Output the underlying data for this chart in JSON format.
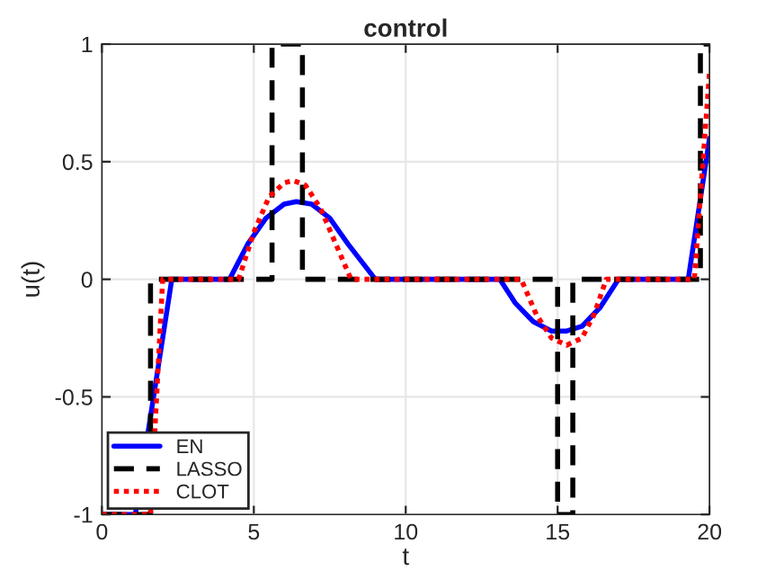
{
  "chart_data": {
    "type": "line",
    "title": "control",
    "xlabel": "t",
    "ylabel": "u(t)",
    "xlim": [
      0,
      20
    ],
    "ylim": [
      -1,
      1
    ],
    "xticks": [
      0,
      5,
      10,
      15,
      20
    ],
    "yticks": [
      {
        "value": -1,
        "label": "-1"
      },
      {
        "value": -0.5,
        "label": "-0.5"
      },
      0,
      0.5,
      1
    ],
    "grid": true,
    "legend": "bottom left",
    "series": [
      {
        "name": "EN",
        "color": "#0000ff",
        "line_style": "solid",
        "x": [
          0,
          1.1,
          2.3,
          4.2,
          4.8,
          5.4,
          6.0,
          6.4,
          6.9,
          7.5,
          8.1,
          9.0,
          13.1,
          13.6,
          14.2,
          14.8,
          15.3,
          15.8,
          16.4,
          17.0,
          19.3,
          20
        ],
        "values": [
          -1,
          -1,
          0,
          0,
          0.15,
          0.26,
          0.32,
          0.33,
          0.32,
          0.26,
          0.15,
          0,
          0,
          -0.1,
          -0.18,
          -0.22,
          -0.22,
          -0.2,
          -0.12,
          0,
          0,
          0.6
        ]
      },
      {
        "name": "LASSO",
        "color": "#000000",
        "line_style": "dashed",
        "x": [
          0,
          1.6,
          1.6,
          5.6,
          5.6,
          6.6,
          6.6,
          15.0,
          15.0,
          15.5,
          15.5,
          19.7,
          19.7,
          20
        ],
        "values": [
          -1,
          -1,
          0,
          0,
          1,
          1,
          0,
          0,
          -1,
          -1,
          0,
          0,
          1,
          1
        ]
      },
      {
        "name": "CLOT",
        "color": "#ff0000",
        "line_style": "dotted",
        "x": [
          0,
          1.6,
          2.0,
          4.5,
          5.0,
          5.5,
          6.0,
          6.3,
          6.7,
          7.2,
          7.7,
          8.2,
          13.8,
          14.3,
          14.8,
          15.3,
          15.8,
          16.2,
          16.6,
          19.5,
          20
        ],
        "values": [
          -1,
          -1,
          0,
          0,
          0.2,
          0.35,
          0.41,
          0.42,
          0.4,
          0.3,
          0.15,
          0,
          0,
          -0.15,
          -0.25,
          -0.28,
          -0.25,
          -0.15,
          0,
          0,
          0.88
        ]
      }
    ]
  }
}
